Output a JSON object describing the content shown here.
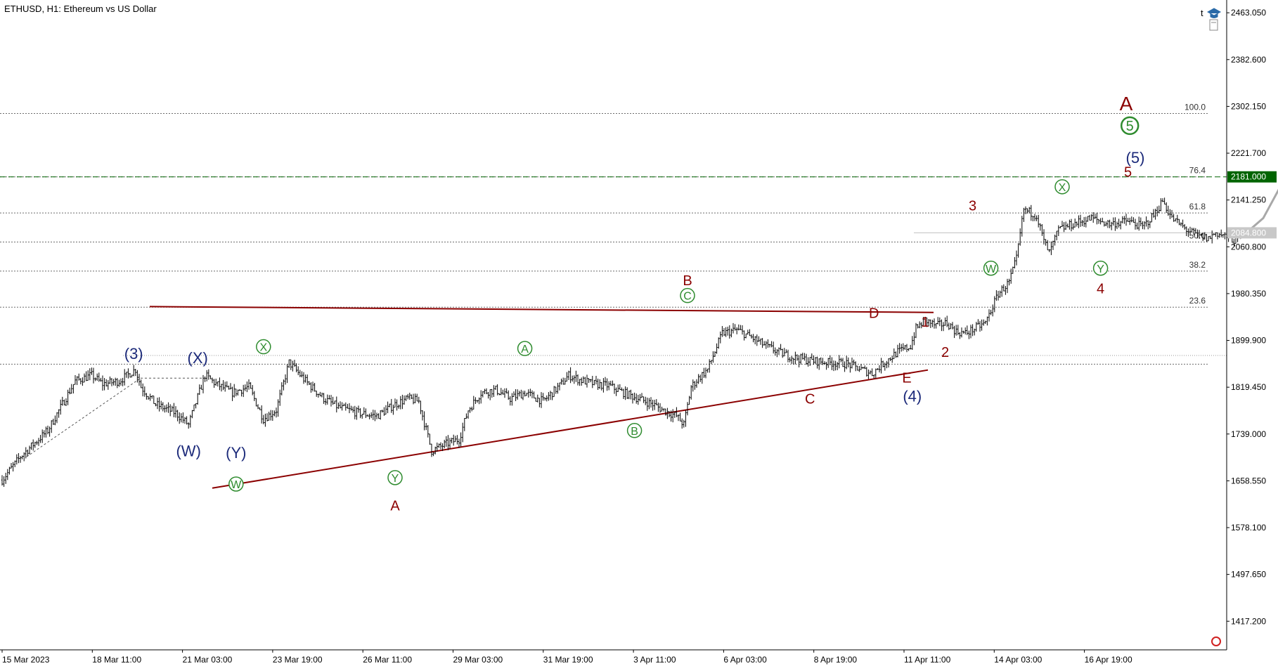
{
  "header": {
    "title": "ETHUSD, H1:  Ethereum vs US Dollar",
    "toolbar_letter": "t"
  },
  "colors": {
    "candle": "#000000",
    "grid_dotted": "#6b6b6b",
    "triangle_line": "#8b0000",
    "wave_red": "#8b0000",
    "wave_blue": "#1c2a7a",
    "wave_green": "#2e8b2e",
    "target_line": "#006400",
    "current_price_line": "#c0c0c0",
    "projection": "#a8a8a8"
  },
  "chart_data": {
    "type": "candlestick",
    "symbol": "ETHUSD",
    "timeframe": "H1",
    "y_ticks": [
      "2463.050",
      "2382.600",
      "2302.150",
      "2221.700",
      "2141.250",
      "2060.800",
      "1980.350",
      "1899.900",
      "1819.450",
      "1739.000",
      "1658.550",
      "1578.100",
      "1497.650",
      "1417.200"
    ],
    "ylim": [
      1368,
      2485
    ],
    "x_ticks": [
      "15 Mar 2023",
      "18 Mar 11:00",
      "21 Mar 03:00",
      "23 Mar 19:00",
      "26 Mar 11:00",
      "29 Mar 03:00",
      "31 Mar 19:00",
      "3 Apr 11:00",
      "6 Apr 03:00",
      "8 Apr 19:00",
      "11 Apr 11:00",
      "14 Apr 03:00",
      "16 Apr 19:00"
    ],
    "price_path": [
      [
        0,
        1660
      ],
      [
        10,
        1700
      ],
      [
        25,
        1745
      ],
      [
        40,
        1830
      ],
      [
        49,
        1840
      ],
      [
        55,
        1825
      ],
      [
        64,
        1830
      ],
      [
        73,
        1850
      ],
      [
        76,
        1820
      ],
      [
        84,
        1790
      ],
      [
        95,
        1775
      ],
      [
        102,
        1755
      ],
      [
        111,
        1840
      ],
      [
        117,
        1825
      ],
      [
        126,
        1810
      ],
      [
        135,
        1820
      ],
      [
        143,
        1765
      ],
      [
        150,
        1780
      ],
      [
        157,
        1862
      ],
      [
        166,
        1830
      ],
      [
        176,
        1800
      ],
      [
        184,
        1785
      ],
      [
        195,
        1775
      ],
      [
        205,
        1770
      ],
      [
        215,
        1790
      ],
      [
        222,
        1800
      ],
      [
        228,
        1795
      ],
      [
        235,
        1710
      ],
      [
        243,
        1722
      ],
      [
        250,
        1730
      ],
      [
        255,
        1780
      ],
      [
        262,
        1810
      ],
      [
        270,
        1815
      ],
      [
        278,
        1800
      ],
      [
        286,
        1810
      ],
      [
        296,
        1795
      ],
      [
        306,
        1825
      ],
      [
        310,
        1840
      ],
      [
        316,
        1832
      ],
      [
        324,
        1825
      ],
      [
        332,
        1822
      ],
      [
        340,
        1810
      ],
      [
        348,
        1800
      ],
      [
        356,
        1790
      ],
      [
        363,
        1778
      ],
      [
        369,
        1770
      ],
      [
        373,
        1755
      ],
      [
        377,
        1820
      ],
      [
        381,
        1835
      ],
      [
        386,
        1850
      ],
      [
        394,
        1912
      ],
      [
        402,
        1918
      ],
      [
        410,
        1905
      ],
      [
        418,
        1890
      ],
      [
        426,
        1878
      ],
      [
        434,
        1870
      ],
      [
        443,
        1865
      ],
      [
        452,
        1862
      ],
      [
        462,
        1860
      ],
      [
        470,
        1850
      ],
      [
        476,
        1843
      ],
      [
        482,
        1860
      ],
      [
        490,
        1880
      ],
      [
        497,
        1890
      ],
      [
        500,
        1920
      ],
      [
        505,
        1935
      ],
      [
        511,
        1925
      ],
      [
        517,
        1930
      ],
      [
        522,
        1915
      ],
      [
        527,
        1912
      ],
      [
        532,
        1920
      ],
      [
        538,
        1930
      ],
      [
        545,
        1980
      ],
      [
        551,
        2000
      ],
      [
        555,
        2040
      ],
      [
        559,
        2125
      ],
      [
        566,
        2115
      ],
      [
        570,
        2070
      ],
      [
        573,
        2050
      ],
      [
        578,
        2090
      ],
      [
        586,
        2100
      ],
      [
        596,
        2110
      ],
      [
        606,
        2100
      ],
      [
        616,
        2105
      ],
      [
        624,
        2095
      ],
      [
        630,
        2115
      ],
      [
        635,
        2140
      ],
      [
        640,
        2110
      ],
      [
        648,
        2090
      ],
      [
        654,
        2080
      ],
      [
        660,
        2075
      ],
      [
        664,
        2085
      ],
      [
        668,
        2080
      ],
      [
        676,
        2070
      ]
    ],
    "fib_levels": [
      {
        "label": "100.0",
        "price": 2290
      },
      {
        "label": "76.4",
        "price": 2181
      },
      {
        "label": "61.8",
        "price": 2119
      },
      {
        "label": "50.0",
        "price": 2069
      },
      {
        "label": "38.2",
        "price": 2019
      },
      {
        "label": "23.6",
        "price": 1957
      },
      {
        "label": "",
        "price": 1859
      }
    ],
    "target_price": "2181.000",
    "current_price": "2084.800",
    "wave_labels": [
      {
        "text": "(3)",
        "color": "blue",
        "circled": false,
        "bar": 72,
        "price": 1877
      },
      {
        "text": "(X)",
        "color": "blue",
        "circled": false,
        "bar": 107,
        "price": 1870
      },
      {
        "text": "(W)",
        "color": "blue",
        "circled": false,
        "bar": 102,
        "price": 1710
      },
      {
        "text": "(Y)",
        "color": "blue",
        "circled": false,
        "bar": 128,
        "price": 1707
      },
      {
        "text": "(4)",
        "color": "blue",
        "circled": false,
        "bar": 498,
        "price": 1804
      },
      {
        "text": "(5)",
        "color": "blue",
        "circled": false,
        "bar": 620,
        "price": 2214
      },
      {
        "text": "W",
        "color": "green",
        "circled": true,
        "bar": 128,
        "price": 1653
      },
      {
        "text": "X",
        "color": "green",
        "circled": true,
        "bar": 143,
        "price": 1889
      },
      {
        "text": "Y",
        "color": "green",
        "circled": true,
        "bar": 215,
        "price": 1664
      },
      {
        "text": "A",
        "color": "green",
        "circled": true,
        "bar": 286,
        "price": 1886
      },
      {
        "text": "B",
        "color": "green",
        "circled": true,
        "bar": 346,
        "price": 1745
      },
      {
        "text": "C",
        "color": "green",
        "circled": true,
        "bar": 375,
        "price": 1977
      },
      {
        "text": "W",
        "color": "green",
        "circled": true,
        "bar": 541,
        "price": 2024
      },
      {
        "text": "X",
        "color": "green",
        "circled": true,
        "bar": 580,
        "price": 2164
      },
      {
        "text": "Y",
        "color": "green",
        "circled": true,
        "bar": 601,
        "price": 2024
      },
      {
        "text": "5",
        "color": "green",
        "circled": true,
        "bar": 617,
        "price": 2269
      },
      {
        "text": "A",
        "color": "red",
        "circled": false,
        "bar": 215,
        "price": 1616
      },
      {
        "text": "B",
        "color": "red",
        "circled": false,
        "bar": 375,
        "price": 2003
      },
      {
        "text": "C",
        "color": "red",
        "circled": false,
        "bar": 442,
        "price": 1800
      },
      {
        "text": "D",
        "color": "red",
        "circled": false,
        "bar": 477,
        "price": 1947
      },
      {
        "text": "E",
        "color": "red",
        "circled": false,
        "bar": 495,
        "price": 1836
      },
      {
        "text": "1",
        "color": "red",
        "circled": false,
        "bar": 505,
        "price": 1932
      },
      {
        "text": "2",
        "color": "red",
        "circled": false,
        "bar": 516,
        "price": 1880
      },
      {
        "text": "3",
        "color": "red",
        "circled": false,
        "bar": 531,
        "price": 2132
      },
      {
        "text": "4",
        "color": "red",
        "circled": false,
        "bar": 601,
        "price": 1989
      },
      {
        "text": "5",
        "color": "red",
        "circled": false,
        "bar": 616,
        "price": 2190
      },
      {
        "text": "A",
        "color": "red",
        "circled": false,
        "bar": 615,
        "price": 2307
      }
    ]
  }
}
